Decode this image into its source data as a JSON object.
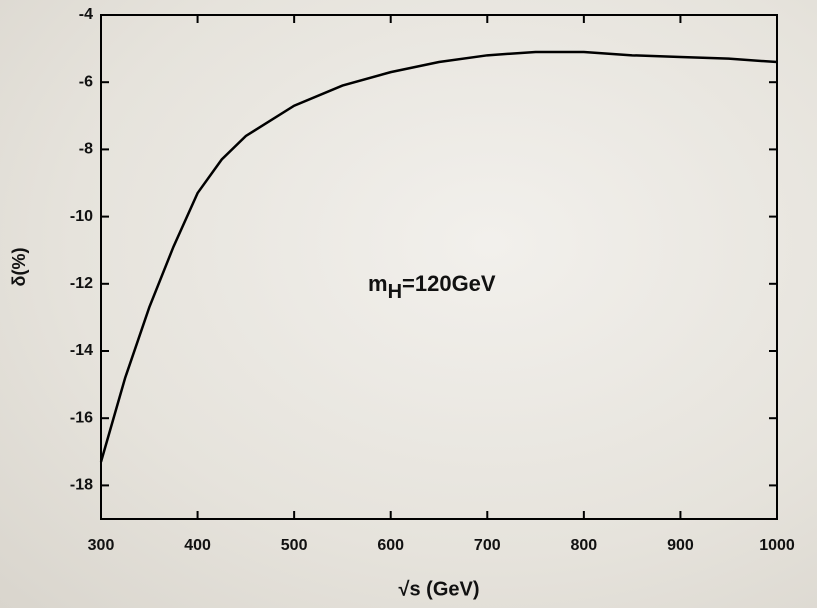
{
  "chart_data": {
    "type": "line",
    "x_label": "√s (GeV)",
    "y_label": "δ(%)",
    "annotation": {
      "main": "m",
      "sub": "H",
      "rest": "=120GeV"
    },
    "x": [
      300,
      325,
      350,
      375,
      400,
      425,
      450,
      500,
      550,
      600,
      650,
      700,
      750,
      800,
      850,
      900,
      950,
      1000
    ],
    "series": [
      {
        "color": "#000000",
        "values": [
          -17.3,
          -14.8,
          -12.7,
          -10.9,
          -9.3,
          -8.3,
          -7.6,
          -6.7,
          -6.1,
          -5.7,
          -5.4,
          -5.2,
          -5.1,
          -5.1,
          -5.2,
          -5.25,
          -5.3,
          -5.4
        ]
      }
    ],
    "xlim": [
      300,
      1000
    ],
    "xticks": [
      300,
      400,
      500,
      600,
      700,
      800,
      900,
      1000
    ],
    "ylim": [
      -19,
      -4
    ],
    "yticks": [
      -4,
      -6,
      -8,
      -10,
      -12,
      -14,
      -16,
      -18
    ]
  }
}
